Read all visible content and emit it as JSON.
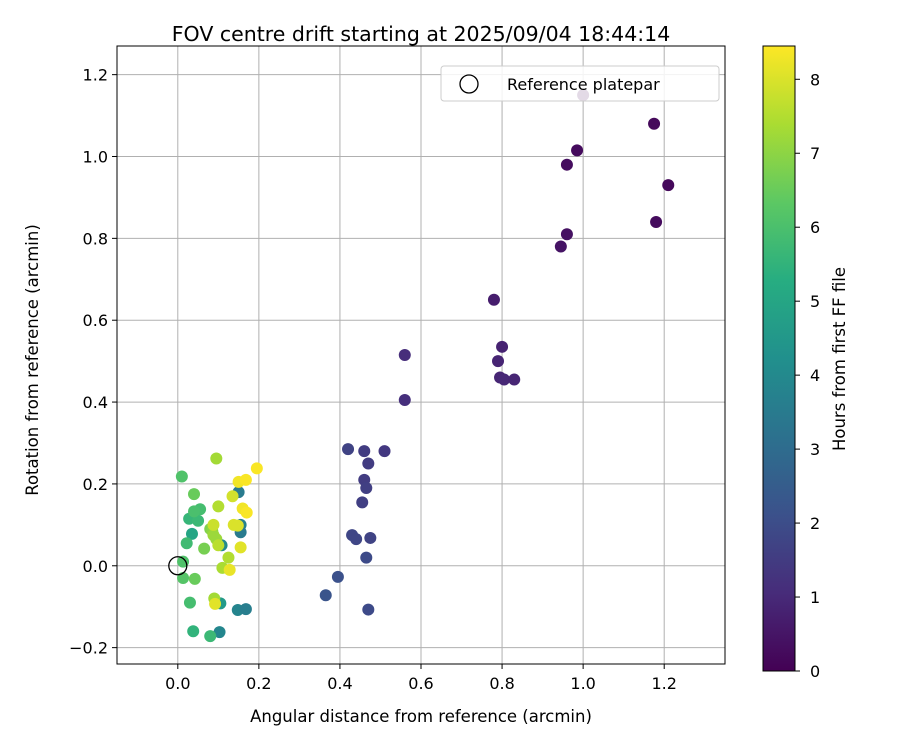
{
  "chart_data": {
    "type": "scatter",
    "title": "FOV centre drift starting at 2025/09/04 18:44:14",
    "xlabel": "Angular distance from reference (arcmin)",
    "ylabel": "Rotation from reference (arcmin)",
    "xlim": [
      -0.15,
      1.35
    ],
    "ylim": [
      -0.24,
      1.27
    ],
    "xticks": [
      "0.0",
      "0.2",
      "0.4",
      "0.6",
      "0.8",
      "1.0",
      "1.2"
    ],
    "yticks": [
      "−0.2",
      "0.0",
      "0.2",
      "0.4",
      "0.6",
      "0.8",
      "1.0",
      "1.2"
    ],
    "grid": true,
    "legend": {
      "position": "top-right",
      "entries": [
        "Reference platepar"
      ]
    },
    "reference_point": {
      "label": "Reference platepar",
      "x": 0.0,
      "y": 0.0,
      "marker": "open-circle"
    },
    "colorbar": {
      "label": "Hours from first FF file",
      "colormap": "viridis",
      "range": [
        0,
        8.45
      ],
      "ticks": [
        "0",
        "1",
        "2",
        "3",
        "4",
        "5",
        "6",
        "7",
        "8"
      ]
    },
    "points": [
      {
        "x": 1.0,
        "y": 1.15,
        "h": 0.15
      },
      {
        "x": 1.175,
        "y": 1.08,
        "h": 0.2
      },
      {
        "x": 0.985,
        "y": 1.015,
        "h": 0.25
      },
      {
        "x": 0.96,
        "y": 0.98,
        "h": 0.3
      },
      {
        "x": 1.21,
        "y": 0.93,
        "h": 0.2
      },
      {
        "x": 1.18,
        "y": 0.84,
        "h": 0.25
      },
      {
        "x": 0.96,
        "y": 0.81,
        "h": 0.4
      },
      {
        "x": 0.945,
        "y": 0.78,
        "h": 0.45
      },
      {
        "x": 0.78,
        "y": 0.65,
        "h": 0.7
      },
      {
        "x": 0.8,
        "y": 0.535,
        "h": 0.8
      },
      {
        "x": 0.79,
        "y": 0.5,
        "h": 0.85
      },
      {
        "x": 0.795,
        "y": 0.46,
        "h": 0.9
      },
      {
        "x": 0.805,
        "y": 0.455,
        "h": 0.95
      },
      {
        "x": 0.83,
        "y": 0.455,
        "h": 0.9
      },
      {
        "x": 0.56,
        "y": 0.515,
        "h": 1.1
      },
      {
        "x": 0.56,
        "y": 0.405,
        "h": 1.15
      },
      {
        "x": 0.42,
        "y": 0.285,
        "h": 1.7
      },
      {
        "x": 0.46,
        "y": 0.28,
        "h": 1.5
      },
      {
        "x": 0.51,
        "y": 0.28,
        "h": 1.4
      },
      {
        "x": 0.47,
        "y": 0.25,
        "h": 1.5
      },
      {
        "x": 0.46,
        "y": 0.21,
        "h": 1.5
      },
      {
        "x": 0.465,
        "y": 0.19,
        "h": 1.6
      },
      {
        "x": 0.455,
        "y": 0.155,
        "h": 1.6
      },
      {
        "x": 0.43,
        "y": 0.075,
        "h": 1.8
      },
      {
        "x": 0.44,
        "y": 0.065,
        "h": 1.8
      },
      {
        "x": 0.475,
        "y": 0.068,
        "h": 1.7
      },
      {
        "x": 0.465,
        "y": 0.02,
        "h": 1.9
      },
      {
        "x": 0.395,
        "y": -0.027,
        "h": 2.1
      },
      {
        "x": 0.365,
        "y": -0.072,
        "h": 2.2
      },
      {
        "x": 0.47,
        "y": -0.107,
        "h": 1.9
      },
      {
        "x": 0.15,
        "y": 0.18,
        "h": 3.5
      },
      {
        "x": 0.155,
        "y": 0.1,
        "h": 3.7
      },
      {
        "x": 0.155,
        "y": 0.082,
        "h": 3.5
      },
      {
        "x": 0.148,
        "y": -0.108,
        "h": 3.8
      },
      {
        "x": 0.168,
        "y": -0.106,
        "h": 3.6
      },
      {
        "x": 0.103,
        "y": -0.162,
        "h": 3.9
      },
      {
        "x": 0.108,
        "y": 0.05,
        "h": 4.0
      },
      {
        "x": 0.105,
        "y": -0.092,
        "h": 4.6
      },
      {
        "x": 0.035,
        "y": 0.078,
        "h": 5.0
      },
      {
        "x": 0.038,
        "y": -0.16,
        "h": 5.5
      },
      {
        "x": 0.08,
        "y": -0.172,
        "h": 5.7
      },
      {
        "x": 0.03,
        "y": -0.09,
        "h": 5.9
      },
      {
        "x": 0.028,
        "y": 0.115,
        "h": 5.6
      },
      {
        "x": 0.05,
        "y": 0.11,
        "h": 5.7
      },
      {
        "x": 0.055,
        "y": 0.138,
        "h": 5.9
      },
      {
        "x": 0.04,
        "y": 0.133,
        "h": 6.0
      },
      {
        "x": 0.022,
        "y": 0.055,
        "h": 5.8
      },
      {
        "x": 0.01,
        "y": 0.218,
        "h": 6.1
      },
      {
        "x": 0.013,
        "y": 0.01,
        "h": 6.1
      },
      {
        "x": 0.013,
        "y": -0.03,
        "h": 6.2
      },
      {
        "x": 0.04,
        "y": 0.175,
        "h": 6.5
      },
      {
        "x": 0.042,
        "y": -0.032,
        "h": 6.5
      },
      {
        "x": 0.065,
        "y": 0.042,
        "h": 6.7
      },
      {
        "x": 0.08,
        "y": 0.09,
        "h": 6.8
      },
      {
        "x": 0.085,
        "y": 0.085,
        "h": 7.0
      },
      {
        "x": 0.088,
        "y": 0.075,
        "h": 7.2
      },
      {
        "x": 0.095,
        "y": 0.065,
        "h": 7.2
      },
      {
        "x": 0.09,
        "y": -0.08,
        "h": 7.3
      },
      {
        "x": 0.095,
        "y": 0.262,
        "h": 7.3
      },
      {
        "x": 0.1,
        "y": 0.145,
        "h": 7.5
      },
      {
        "x": 0.1,
        "y": 0.05,
        "h": 7.6
      },
      {
        "x": 0.11,
        "y": -0.005,
        "h": 7.4
      },
      {
        "x": 0.125,
        "y": 0.02,
        "h": 7.5
      },
      {
        "x": 0.088,
        "y": 0.1,
        "h": 7.8
      },
      {
        "x": 0.092,
        "y": -0.093,
        "h": 8.1
      },
      {
        "x": 0.128,
        "y": -0.01,
        "h": 8.2
      },
      {
        "x": 0.135,
        "y": 0.17,
        "h": 7.9
      },
      {
        "x": 0.138,
        "y": 0.1,
        "h": 8.0
      },
      {
        "x": 0.148,
        "y": 0.098,
        "h": 8.0
      },
      {
        "x": 0.15,
        "y": 0.205,
        "h": 8.3
      },
      {
        "x": 0.155,
        "y": 0.045,
        "h": 8.1
      },
      {
        "x": 0.16,
        "y": 0.14,
        "h": 8.3
      },
      {
        "x": 0.168,
        "y": 0.21,
        "h": 8.4
      },
      {
        "x": 0.17,
        "y": 0.13,
        "h": 8.4
      },
      {
        "x": 0.195,
        "y": 0.238,
        "h": 8.4
      }
    ]
  }
}
